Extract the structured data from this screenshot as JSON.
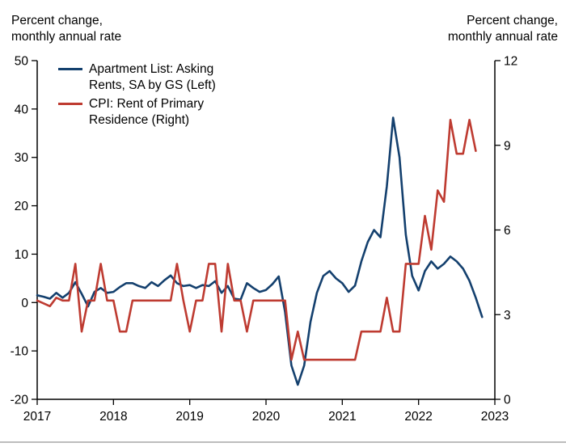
{
  "header": {
    "left_axis_title": "Percent change,\nmonthly annual rate",
    "right_axis_title": "Percent change,\nmonthly annual rate"
  },
  "chart_data": {
    "type": "line",
    "title": "",
    "x_start": "2017-01",
    "frequency": "monthly",
    "grid": false,
    "legend_position": "top-left",
    "x_axis": {
      "ticks": [
        2017,
        2018,
        2019,
        2020,
        2021,
        2022,
        2023
      ],
      "range": [
        2017,
        2023
      ]
    },
    "y_left": {
      "label": "Percent change, monthly annual rate",
      "ticks": [
        50,
        40,
        30,
        20,
        10,
        0,
        -10,
        -20
      ],
      "range": [
        -20,
        50
      ]
    },
    "y_right": {
      "label": "Percent change, monthly annual rate",
      "ticks": [
        12,
        9,
        6,
        3,
        0
      ],
      "range": [
        0,
        12
      ]
    },
    "series": [
      {
        "id": "apartment-list-line",
        "name": "Apartment List: Asking\nRents, SA by GS (Left)",
        "axis": "left",
        "color": "#14406E",
        "values": [
          1.5,
          1.2,
          0.8,
          2.0,
          1.0,
          2.0,
          4.2,
          1.8,
          -0.8,
          2.2,
          3.0,
          2.0,
          2.2,
          3.2,
          4.0,
          4.0,
          3.4,
          3.0,
          4.2,
          3.4,
          4.6,
          5.6,
          4.0,
          3.4,
          3.6,
          3.0,
          3.6,
          3.4,
          4.4,
          2.0,
          3.4,
          0.8,
          0.6,
          4.0,
          3.0,
          2.2,
          2.6,
          3.8,
          5.4,
          -2.0,
          -13.0,
          -17.0,
          -13.0,
          -4.0,
          2.0,
          5.5,
          6.5,
          5.0,
          4.0,
          2.2,
          3.5,
          8.5,
          12.5,
          15.0,
          13.5,
          24.0,
          38.2,
          30.0,
          14.0,
          5.5,
          2.5,
          6.5,
          8.5,
          7.0,
          8.0,
          9.5,
          8.5,
          7.0,
          4.5,
          1.0,
          -3.0
        ]
      },
      {
        "id": "cpi-rent-line",
        "name": "CPI: Rent of Primary\nResidence (Right)",
        "axis": "right",
        "color": "#BE3B31",
        "values": [
          3.5,
          3.4,
          3.3,
          3.6,
          3.5,
          3.5,
          4.8,
          2.4,
          3.5,
          3.5,
          4.8,
          3.5,
          3.5,
          2.4,
          2.4,
          3.5,
          3.5,
          3.5,
          3.5,
          3.5,
          3.5,
          3.5,
          4.8,
          3.5,
          2.4,
          3.5,
          3.5,
          4.8,
          4.8,
          2.4,
          4.8,
          3.5,
          3.5,
          2.4,
          3.5,
          3.5,
          3.5,
          3.5,
          3.5,
          3.5,
          1.4,
          2.4,
          1.4,
          1.4,
          1.4,
          1.4,
          1.4,
          1.4,
          1.4,
          1.4,
          1.4,
          2.4,
          2.4,
          2.4,
          2.4,
          3.6,
          2.4,
          2.4,
          4.8,
          4.8,
          4.8,
          6.5,
          5.3,
          7.4,
          7.0,
          9.9,
          8.7,
          8.7,
          9.9,
          8.8
        ]
      }
    ]
  }
}
